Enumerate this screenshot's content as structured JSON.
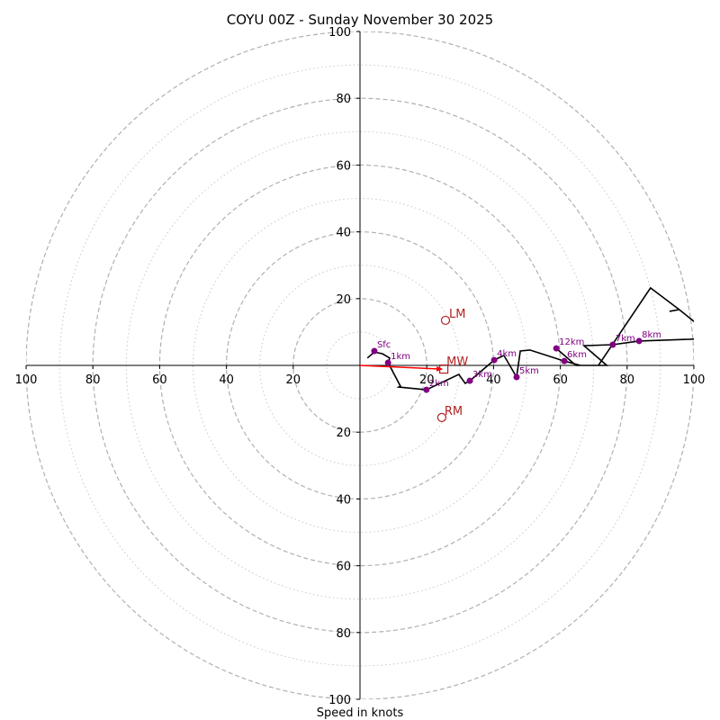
{
  "chart_data": {
    "type": "line",
    "subtype": "hodograph",
    "title": "COYU 00Z - Sunday November 30 2025",
    "xlabel": "Speed in knots",
    "ylabel": "",
    "xlim": [
      -100,
      100
    ],
    "ylim": [
      -100,
      100
    ],
    "grid": true,
    "rings_dashed": [
      20,
      40,
      60,
      80,
      100
    ],
    "rings_dotted": [
      10,
      30,
      50,
      70,
      90
    ],
    "x_ticks": [
      100,
      80,
      60,
      40,
      20,
      20,
      40,
      60,
      80,
      100
    ],
    "x_tick_values": [
      -100,
      -80,
      -60,
      -40,
      -20,
      20,
      40,
      60,
      80,
      100
    ],
    "y_ticks": [
      100,
      80,
      60,
      40,
      20,
      20,
      40,
      60,
      80,
      100
    ],
    "y_tick_values": [
      100,
      80,
      60,
      40,
      20,
      -20,
      -40,
      -60,
      -80,
      -100
    ],
    "series": [
      {
        "name": "hodograph",
        "color": "#000000",
        "points": [
          [
            2.2,
            2.2
          ],
          [
            4.3,
            4.0
          ],
          [
            6.7,
            3.5
          ],
          [
            8.9,
            2.2
          ],
          [
            8.4,
            0.8
          ],
          [
            12.1,
            -6.2
          ],
          [
            11.6,
            -6.5
          ],
          [
            19.9,
            -7.3
          ],
          [
            29.6,
            -2.7
          ],
          [
            31.5,
            -5.4
          ],
          [
            32.9,
            -4.6
          ],
          [
            40.2,
            1.6
          ],
          [
            43.1,
            3.0
          ],
          [
            46.9,
            -3.5
          ],
          [
            48.0,
            4.3
          ],
          [
            50.9,
            4.6
          ],
          [
            61.2,
            1.3
          ],
          [
            66.0,
            0.0
          ],
          [
            71.4,
            0.0
          ],
          [
            87.0,
            23.2
          ],
          [
            95.6,
            16.7
          ],
          [
            104.0,
            10.0
          ],
          [
            104.0,
            8.0
          ],
          [
            83.6,
            7.3
          ],
          [
            75.7,
            6.2
          ],
          [
            67.1,
            5.9
          ],
          [
            73.9,
            0.0
          ],
          [
            64.7,
            0.0
          ],
          [
            58.8,
            5.1
          ]
        ],
        "spur": [
          [
            95.6,
            16.7
          ],
          [
            92.7,
            16.2
          ]
        ]
      }
    ],
    "height_markers": [
      {
        "label": "Sfc",
        "u": 4.3,
        "v": 4.3
      },
      {
        "label": "1km",
        "u": 8.4,
        "v": 0.8
      },
      {
        "label": "2km",
        "u": 19.9,
        "v": -7.3
      },
      {
        "label": "3km",
        "u": 32.9,
        "v": -4.6
      },
      {
        "label": "4km",
        "u": 40.2,
        "v": 1.6
      },
      {
        "label": "5km",
        "u": 46.9,
        "v": -3.5
      },
      {
        "label": "6km",
        "u": 61.2,
        "v": 1.3
      },
      {
        "label": "7km",
        "u": 75.7,
        "v": 6.2
      },
      {
        "label": "8km",
        "u": 83.6,
        "v": 7.3
      },
      {
        "label": "12km",
        "u": 58.8,
        "v": 5.1
      }
    ],
    "storm_motion": {
      "LM": {
        "label": "LM",
        "u": 25.6,
        "v": 13.5
      },
      "RM": {
        "label": "RM",
        "u": 24.5,
        "v": -15.6
      },
      "MW": {
        "label": "MW",
        "u": 25.1,
        "v": -1.1
      }
    },
    "mean_wind_arrow": {
      "from": [
        0,
        0
      ],
      "to": [
        25.1,
        -1.1
      ],
      "color": "#ff0000"
    },
    "colors": {
      "marker": "#800080",
      "storm": "#b22222",
      "grid": "#b0b0b0",
      "line": "#000000"
    }
  }
}
